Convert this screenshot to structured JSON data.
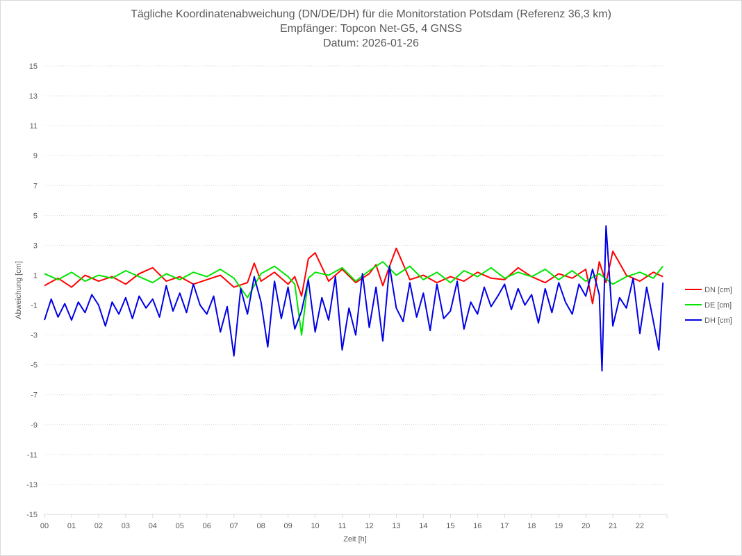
{
  "chart_data": {
    "type": "line",
    "title": [
      "Tägliche Koordinatenabweichung (DN/DE/DH) für die Monitorstation Potsdam (Referenz 36,3 km)",
      "Empfänger: Topcon Net-G5, 4 GNSS",
      "Datum: 2026-01-26"
    ],
    "xlabel": "Zeit [h]",
    "ylabel": "Abweichung [cm]",
    "xlim": [
      0,
      23
    ],
    "ylim": [
      -15,
      15
    ],
    "x_ticks": [
      "00",
      "01",
      "02",
      "03",
      "04",
      "05",
      "06",
      "07",
      "08",
      "09",
      "10",
      "11",
      "12",
      "13",
      "14",
      "15",
      "16",
      "17",
      "18",
      "19",
      "20",
      "21",
      "22"
    ],
    "y_ticks": [
      15,
      13,
      11,
      9,
      7,
      5,
      3,
      1,
      -1,
      -3,
      -5,
      -7,
      -9,
      -11,
      -13,
      -15
    ],
    "grid": "horizontal-dotted",
    "legend_position": "right",
    "series": [
      {
        "name": "DN [cm]",
        "color": "#ff0000",
        "x": [
          0,
          0.5,
          1,
          1.5,
          2,
          2.5,
          3,
          3.5,
          4,
          4.5,
          5,
          5.5,
          6,
          6.5,
          7,
          7.5,
          7.75,
          8,
          8.5,
          9,
          9.25,
          9.5,
          9.75,
          10,
          10.5,
          11,
          11.5,
          12,
          12.25,
          12.5,
          12.75,
          13,
          13.5,
          14,
          14.5,
          15,
          15.5,
          16,
          16.5,
          17,
          17.5,
          18,
          18.5,
          19,
          19.5,
          20,
          20.25,
          20.5,
          20.75,
          21,
          21.5,
          22,
          22.5,
          22.85
        ],
        "values": [
          0.3,
          0.8,
          0.2,
          1.0,
          0.6,
          0.9,
          0.4,
          1.1,
          1.5,
          0.6,
          0.9,
          0.4,
          0.7,
          1.0,
          0.2,
          0.5,
          1.8,
          0.6,
          1.2,
          0.4,
          0.9,
          -0.4,
          2.1,
          2.5,
          0.6,
          1.4,
          0.5,
          1.1,
          1.7,
          0.3,
          1.6,
          2.8,
          0.7,
          1.0,
          0.5,
          0.9,
          0.6,
          1.2,
          0.8,
          0.7,
          1.5,
          0.9,
          0.5,
          1.1,
          0.8,
          1.4,
          -0.9,
          1.9,
          0.5,
          2.6,
          1.0,
          0.6,
          1.2,
          0.9
        ]
      },
      {
        "name": "DE [cm]",
        "color": "#00e600",
        "x": [
          0,
          0.5,
          1,
          1.5,
          2,
          2.5,
          3,
          3.5,
          4,
          4.5,
          5,
          5.5,
          6,
          6.5,
          7,
          7.5,
          8,
          8.5,
          9,
          9.25,
          9.5,
          9.75,
          10,
          10.5,
          11,
          11.5,
          12,
          12.5,
          13,
          13.5,
          14,
          14.5,
          15,
          15.5,
          16,
          16.5,
          17,
          17.5,
          18,
          18.5,
          19,
          19.5,
          20,
          20.5,
          21,
          21.5,
          22,
          22.5,
          22.85
        ],
        "values": [
          1.1,
          0.7,
          1.2,
          0.6,
          1.0,
          0.8,
          1.3,
          0.9,
          0.5,
          1.1,
          0.7,
          1.2,
          0.9,
          1.4,
          0.8,
          -0.5,
          1.1,
          1.6,
          0.9,
          0.4,
          -3.0,
          0.8,
          1.2,
          1.0,
          1.5,
          0.6,
          1.3,
          1.9,
          1.0,
          1.6,
          0.7,
          1.2,
          0.5,
          1.3,
          0.9,
          1.5,
          0.8,
          1.2,
          0.9,
          1.4,
          0.7,
          1.3,
          0.6,
          1.1,
          0.4,
          0.9,
          1.2,
          0.8,
          1.6
        ]
      },
      {
        "name": "DH [cm]",
        "color": "#0000e6",
        "x": [
          0,
          0.25,
          0.5,
          0.75,
          1,
          1.25,
          1.5,
          1.75,
          2,
          2.25,
          2.5,
          2.75,
          3,
          3.25,
          3.5,
          3.75,
          4,
          4.25,
          4.5,
          4.75,
          5,
          5.25,
          5.5,
          5.75,
          6,
          6.25,
          6.5,
          6.75,
          7,
          7.25,
          7.5,
          7.75,
          8,
          8.25,
          8.5,
          8.75,
          9,
          9.25,
          9.5,
          9.75,
          10,
          10.25,
          10.5,
          10.75,
          11,
          11.25,
          11.5,
          11.75,
          12,
          12.25,
          12.5,
          12.75,
          13,
          13.25,
          13.5,
          13.75,
          14,
          14.25,
          14.5,
          14.75,
          15,
          15.25,
          15.5,
          15.75,
          16,
          16.25,
          16.5,
          16.75,
          17,
          17.25,
          17.5,
          17.75,
          18,
          18.25,
          18.5,
          18.75,
          19,
          19.25,
          19.5,
          19.75,
          20,
          20.25,
          20.5,
          20.6,
          20.75,
          21,
          21.25,
          21.5,
          21.75,
          22,
          22.25,
          22.5,
          22.7,
          22.85
        ],
        "values": [
          -2.0,
          -0.6,
          -1.8,
          -0.9,
          -2.0,
          -0.8,
          -1.5,
          -0.3,
          -1.0,
          -2.4,
          -0.8,
          -1.6,
          -0.5,
          -1.9,
          -0.4,
          -1.2,
          -0.6,
          -1.8,
          0.3,
          -1.4,
          -0.2,
          -1.5,
          0.4,
          -1.0,
          -1.6,
          -0.4,
          -2.8,
          -1.1,
          -4.4,
          0.1,
          -1.6,
          0.9,
          -0.8,
          -3.8,
          0.6,
          -1.9,
          0.2,
          -2.6,
          -1.4,
          0.7,
          -2.8,
          -0.5,
          -2.0,
          0.9,
          -4.0,
          -1.2,
          -3.0,
          1.1,
          -2.5,
          0.2,
          -3.4,
          1.6,
          -1.2,
          -2.1,
          0.5,
          -1.8,
          -0.2,
          -2.7,
          0.4,
          -1.9,
          -1.4,
          0.6,
          -2.6,
          -0.8,
          -1.6,
          0.2,
          -1.1,
          -0.4,
          0.4,
          -1.3,
          0.1,
          -1.0,
          -0.3,
          -2.2,
          0.1,
          -1.5,
          0.5,
          -0.8,
          -1.6,
          0.4,
          -0.4,
          1.4,
          -0.3,
          -5.4,
          4.3,
          -2.4,
          -0.5,
          -1.2,
          0.8,
          -2.9,
          0.2,
          -2.1,
          -4.0,
          0.5
        ]
      }
    ]
  }
}
